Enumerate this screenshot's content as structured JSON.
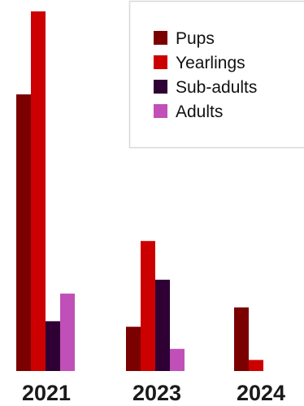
{
  "chart_data": {
    "type": "bar",
    "categories": [
      "2021",
      "2023",
      "2024"
    ],
    "series": [
      {
        "name": "Pups",
        "values": [
          100,
          16,
          23
        ],
        "color": "#7b0000"
      },
      {
        "name": "Yearlings",
        "values": [
          130,
          47,
          4
        ],
        "color": "#cc0000"
      },
      {
        "name": "Sub-adults",
        "values": [
          18,
          33,
          0
        ],
        "color": "#2e0033"
      },
      {
        "name": "Adults",
        "values": [
          28,
          8,
          0
        ],
        "color": "#c050b8"
      }
    ],
    "title": "",
    "xlabel": "",
    "ylabel": "",
    "ylim": [
      0,
      130
    ],
    "grid": false,
    "legend_position": "top-right"
  }
}
